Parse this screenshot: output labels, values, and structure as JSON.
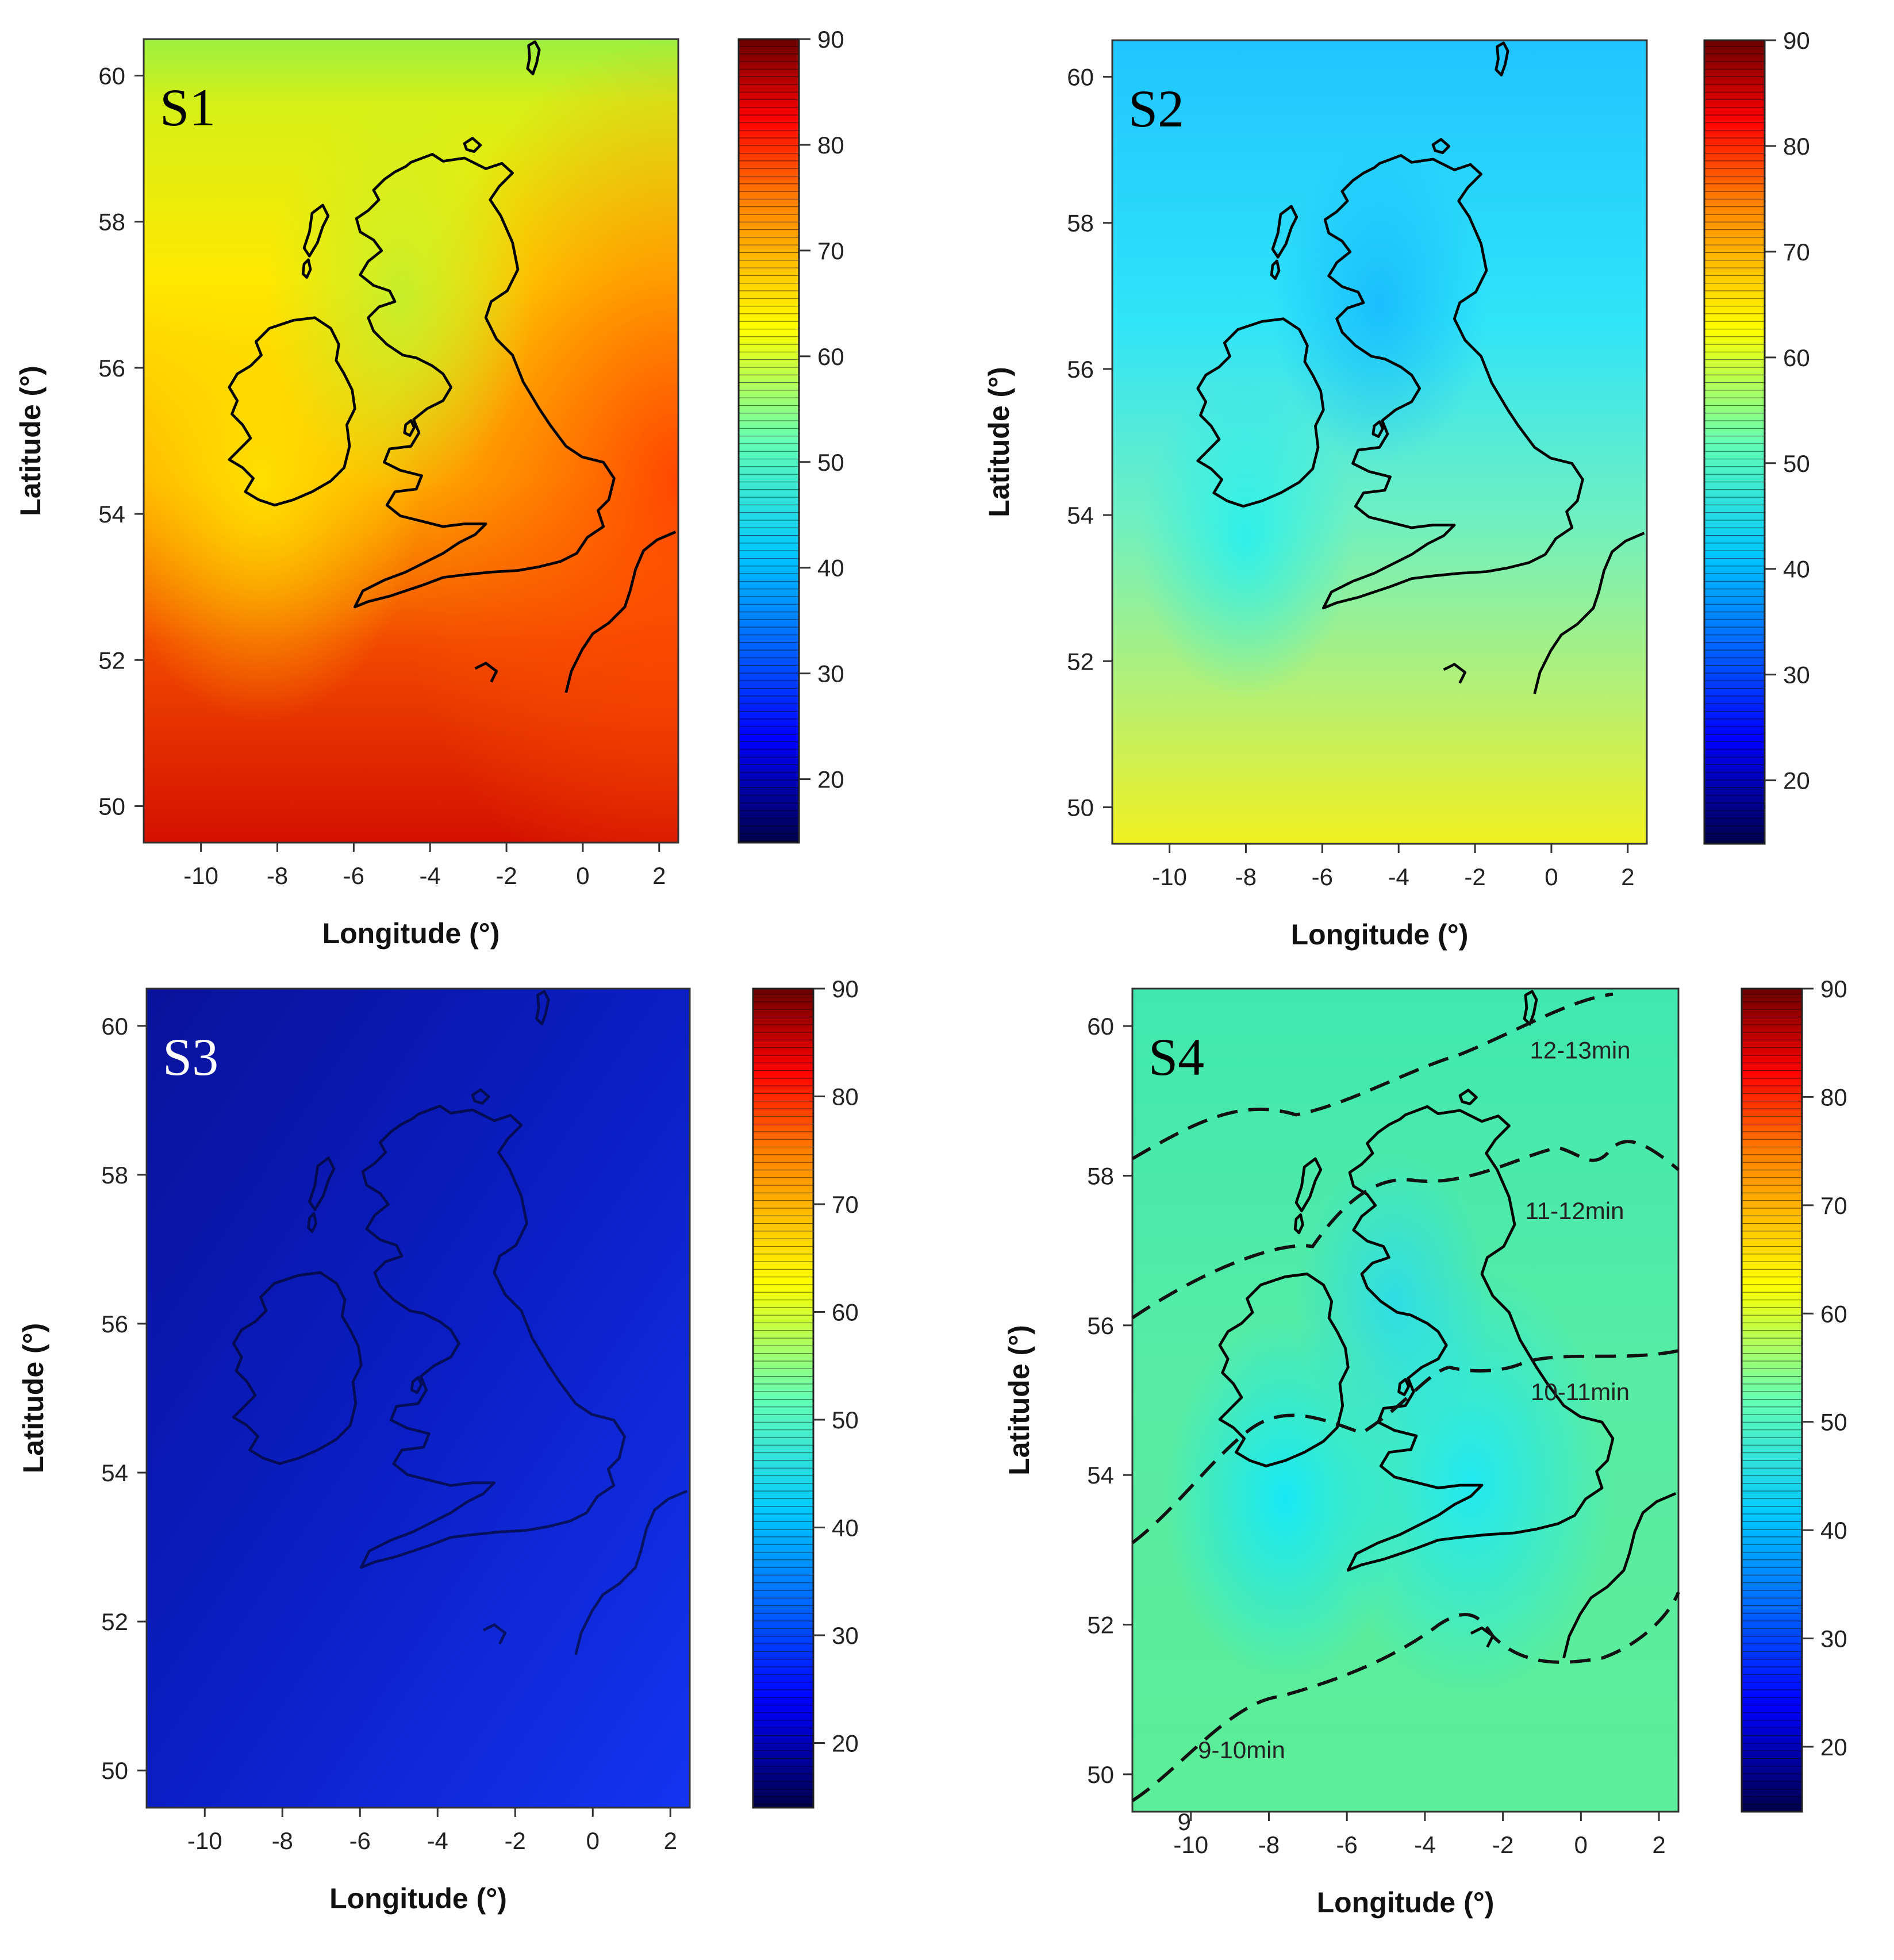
{
  "panels": [
    {
      "id": "S1",
      "label": "S1",
      "label_color": "#000000",
      "scheme": "warm",
      "xlabel": "Longitude (°)",
      "ylabel": "Latitude (°)",
      "lon_ticks": [
        -10,
        -8,
        -6,
        -4,
        -2,
        0,
        2
      ],
      "lat_ticks": [
        50,
        52,
        54,
        56,
        58,
        60
      ],
      "colorbar_ticks": [
        20,
        30,
        40,
        50,
        60,
        70,
        80,
        90
      ]
    },
    {
      "id": "S2",
      "label": "S2",
      "label_color": "#000000",
      "scheme": "cyan",
      "xlabel": "Longitude (°)",
      "ylabel": "Latitude (°)",
      "lon_ticks": [
        -10,
        -8,
        -6,
        -4,
        -2,
        0,
        2
      ],
      "lat_ticks": [
        50,
        52,
        54,
        56,
        58,
        60
      ],
      "colorbar_ticks": [
        20,
        30,
        40,
        50,
        60,
        70,
        80,
        90
      ]
    },
    {
      "id": "S3",
      "label": "S3",
      "label_color": "#ffffff",
      "scheme": "blue",
      "xlabel": "Longitude (°)",
      "ylabel": "Latitude (°)",
      "lon_ticks": [
        -10,
        -8,
        -6,
        -4,
        -2,
        0,
        2
      ],
      "lat_ticks": [
        50,
        52,
        54,
        56,
        58,
        60
      ],
      "colorbar_ticks": [
        20,
        30,
        40,
        50,
        60,
        70,
        80,
        90
      ]
    },
    {
      "id": "S4",
      "label": "S4",
      "label_color": "#000000",
      "scheme": "green",
      "xlabel": "Longitude (°)",
      "ylabel": "Latitude (°)",
      "lon_ticks": [
        -10,
        -8,
        -6,
        -4,
        -2,
        0,
        2
      ],
      "lat_ticks": [
        50,
        52,
        54,
        56,
        58,
        60
      ],
      "colorbar_ticks": [
        20,
        30,
        40,
        50,
        60,
        70,
        80,
        90
      ],
      "contour_labels": [
        "12-13min",
        "11-12min",
        "10-11min",
        "9-10min"
      ],
      "stray_label": "9"
    }
  ],
  "colors": {
    "warm": [
      "#ffe600",
      "#ff9a00",
      "#f13200",
      "#d40f00"
    ],
    "cyan": [
      "#1ec8ff",
      "#3ef0f0",
      "#a4f07a",
      "#f0f020"
    ],
    "blue": [
      "#0a14a0",
      "#0c1fc8",
      "#1430e8"
    ],
    "green": [
      "#2fe0c0",
      "#60ef9c",
      "#10e8ff"
    ],
    "colorbar": [
      "#00004a",
      "#0000ff",
      "#00c8ff",
      "#64ffb4",
      "#ffff00",
      "#ff8000",
      "#ff0000",
      "#6a0000"
    ]
  }
}
